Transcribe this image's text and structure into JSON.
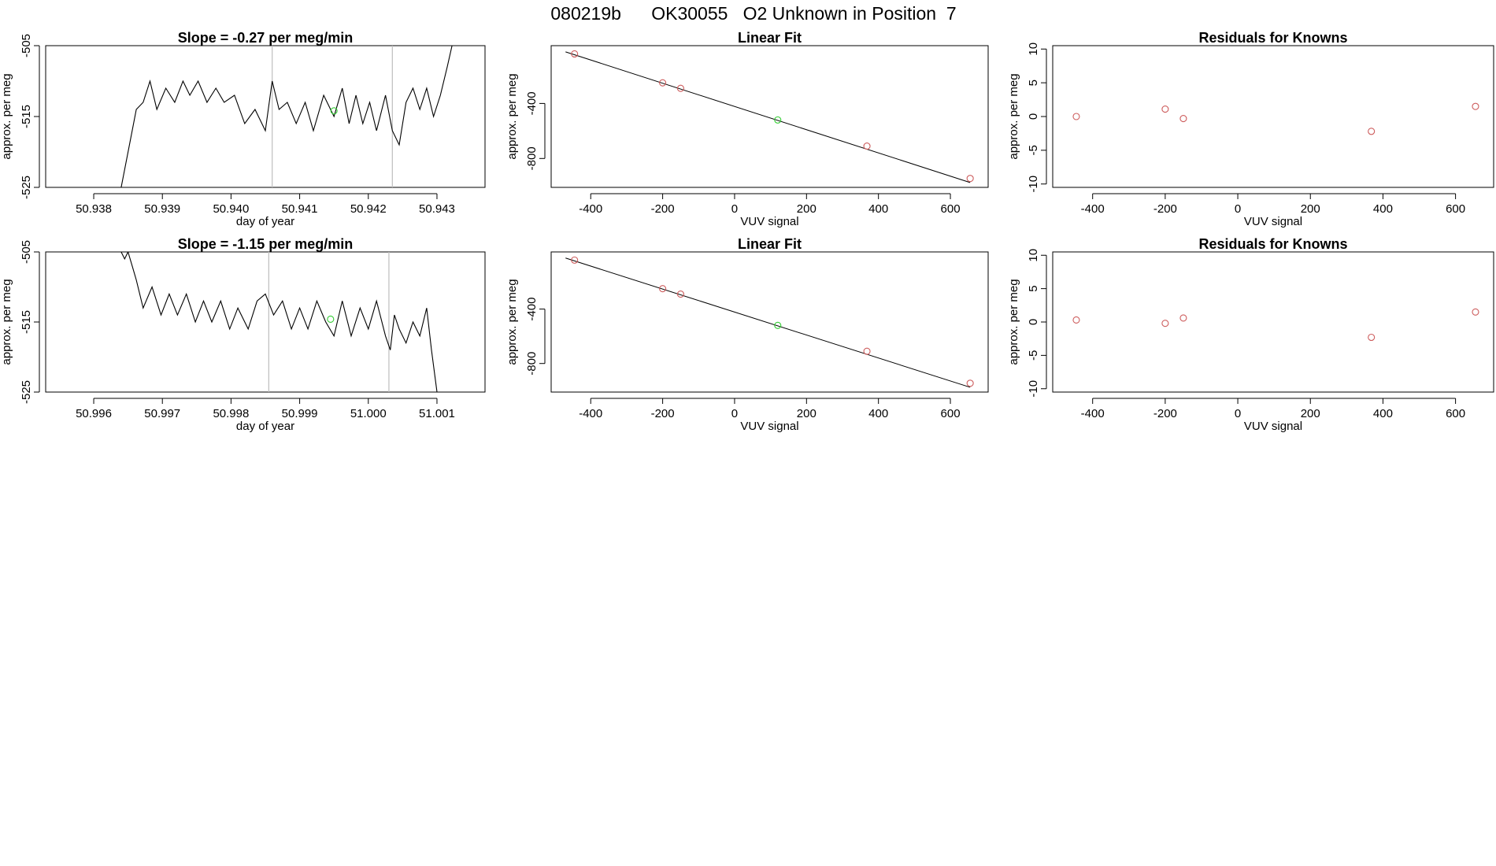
{
  "figure": {
    "title": "080219b      OK30055   O2 Unknown in Position  7"
  },
  "colors": {
    "known": "#cd5c5c",
    "unknown": "#32cd32",
    "line": "#000000",
    "marker": "#bebebe"
  },
  "chart_data": [
    {
      "type": "line",
      "title": "Slope =  -0.27  per meg/min",
      "xlabel": "day of year",
      "ylabel": "approx. per meg",
      "xlim": [
        50.9373,
        50.9437
      ],
      "ylim": [
        -525,
        -505
      ],
      "xticks": [
        "50.938",
        "50.939",
        "50.940",
        "50.941",
        "50.942",
        "50.943"
      ],
      "xtick_values": [
        50.938,
        50.939,
        50.94,
        50.941,
        50.942,
        50.943
      ],
      "yticks": [
        "-525",
        "-515",
        "-505"
      ],
      "ytick_values": [
        -525,
        -515,
        -505
      ],
      "vlines": [
        50.9406,
        50.94235
      ],
      "series": [
        {
          "role": "trace",
          "x": [
            50.9384,
            50.93852,
            50.93862,
            50.93872,
            50.93882,
            50.93892,
            50.93905,
            50.93918,
            50.9393,
            50.9394,
            50.93952,
            50.93965,
            50.93978,
            50.9399,
            50.94005,
            50.9402,
            50.94035,
            50.9405,
            50.9406,
            50.9407,
            50.94082,
            50.94095,
            50.94108,
            50.9412,
            50.94135,
            50.9415,
            50.94162,
            50.94172,
            50.94182,
            50.94192,
            50.94202,
            50.94212,
            50.94225,
            50.94235,
            50.94245,
            50.94255,
            50.94265,
            50.94275,
            50.94285,
            50.94295,
            50.94305,
            50.94315,
            50.94322
          ],
          "y": [
            -525,
            -519,
            -514,
            -513,
            -510,
            -514,
            -511,
            -513,
            -510,
            -512,
            -510,
            -513,
            -511,
            -513,
            -512,
            -516,
            -514,
            -517,
            -510,
            -514,
            -513,
            -516,
            -513,
            -517,
            -512,
            -515,
            -511,
            -516,
            -512,
            -516,
            -513,
            -517,
            -512,
            -517,
            -519,
            -513,
            -511,
            -514,
            -511,
            -515,
            -512,
            -508,
            -505
          ]
        },
        {
          "role": "unknown",
          "x": [
            50.9415
          ],
          "y": [
            -514.2
          ]
        }
      ]
    },
    {
      "type": "scatter",
      "title": "Linear Fit",
      "xlabel": "VUV signal",
      "ylabel": "approx. per meg",
      "xlim": [
        -510,
        705
      ],
      "ylim": [
        -1010,
        20
      ],
      "xticks": [
        "-400",
        "-200",
        "0",
        "200",
        "400",
        "600"
      ],
      "xtick_values": [
        -400,
        -200,
        0,
        200,
        400,
        600
      ],
      "yticks": [
        "-800",
        "-400"
      ],
      "ytick_values": [
        -800,
        -400
      ],
      "fit_line": {
        "x": [
          -470,
          655
        ],
        "y": [
          -25,
          -975
        ]
      },
      "series": [
        {
          "role": "known",
          "x": [
            -445,
            -200,
            -150,
            368,
            655
          ],
          "y": [
            -40,
            -250,
            -290,
            -710,
            -945
          ]
        },
        {
          "role": "unknown",
          "x": [
            120
          ],
          "y": [
            -520
          ]
        }
      ]
    },
    {
      "type": "scatter",
      "title": "Residuals for Knowns",
      "xlabel": "VUV signal",
      "ylabel": "approx. per meg",
      "xlim": [
        -510,
        705
      ],
      "ylim": [
        -10.5,
        10.5
      ],
      "xticks": [
        "-400",
        "-200",
        "0",
        "200",
        "400",
        "600"
      ],
      "xtick_values": [
        -400,
        -200,
        0,
        200,
        400,
        600
      ],
      "yticks": [
        "-10",
        "-5",
        "0",
        "5",
        "10"
      ],
      "ytick_values": [
        -10,
        -5,
        0,
        5,
        10
      ],
      "series": [
        {
          "role": "known",
          "x": [
            -445,
            -200,
            -150,
            368,
            655
          ],
          "y": [
            0.0,
            1.1,
            -0.3,
            -2.2,
            1.5
          ]
        }
      ]
    },
    {
      "type": "line",
      "title": "Slope =  -1.15  per meg/min",
      "xlabel": "day of year",
      "ylabel": "approx. per meg",
      "xlim": [
        50.9953,
        51.0017
      ],
      "ylim": [
        -525,
        -505
      ],
      "xticks": [
        "50.996",
        "50.997",
        "50.998",
        "50.999",
        "51.000",
        "51.001"
      ],
      "xtick_values": [
        50.996,
        50.997,
        50.998,
        50.999,
        51.0,
        51.001
      ],
      "yticks": [
        "-525",
        "-515",
        "-505"
      ],
      "ytick_values": [
        -525,
        -515,
        -505
      ],
      "vlines": [
        50.99855,
        51.0003
      ],
      "series": [
        {
          "role": "trace",
          "x": [
            50.9964,
            50.99645,
            50.9965,
            50.99656,
            50.99662,
            50.99672,
            50.99685,
            50.99698,
            50.9971,
            50.99722,
            50.99735,
            50.99748,
            50.9976,
            50.99772,
            50.99785,
            50.99798,
            50.9981,
            50.99825,
            50.99838,
            50.9985,
            50.99862,
            50.99875,
            50.99888,
            50.999,
            50.99912,
            50.99925,
            50.99938,
            50.9995,
            50.99962,
            50.99975,
            50.99988,
            51.0,
            51.00012,
            51.00025,
            51.00032,
            51.00038,
            51.00045,
            51.00055,
            51.00065,
            51.00075,
            51.00085,
            51.00092,
            51.001
          ],
          "y": [
            -505,
            -506,
            -505,
            -507,
            -509,
            -513,
            -510,
            -514,
            -511,
            -514,
            -511,
            -515,
            -512,
            -515,
            -512,
            -516,
            -513,
            -516,
            -512,
            -511,
            -514,
            -512,
            -516,
            -513,
            -516,
            -512,
            -515,
            -517,
            -512,
            -517,
            -513,
            -516,
            -512,
            -517,
            -519,
            -514,
            -516,
            -518,
            -515,
            -517,
            -513,
            -519,
            -525
          ]
        },
        {
          "role": "unknown",
          "x": [
            50.99945
          ],
          "y": [
            -514.6
          ]
        }
      ]
    },
    {
      "type": "scatter",
      "title": "Linear Fit",
      "xlabel": "VUV signal",
      "ylabel": "approx. per meg",
      "xlim": [
        -510,
        705
      ],
      "ylim": [
        -1010,
        20
      ],
      "xticks": [
        "-400",
        "-200",
        "0",
        "200",
        "400",
        "600"
      ],
      "xtick_values": [
        -400,
        -200,
        0,
        200,
        400,
        600
      ],
      "yticks": [
        "-800",
        "-400"
      ],
      "ytick_values": [
        -800,
        -400
      ],
      "fit_line": {
        "x": [
          -470,
          655
        ],
        "y": [
          -25,
          -975
        ]
      },
      "series": [
        {
          "role": "known",
          "x": [
            -445,
            -200,
            -150,
            368,
            655
          ],
          "y": [
            -40,
            -250,
            -290,
            -710,
            -945
          ]
        },
        {
          "role": "unknown",
          "x": [
            120
          ],
          "y": [
            -520
          ]
        }
      ]
    },
    {
      "type": "scatter",
      "title": "Residuals for Knowns",
      "xlabel": "VUV signal",
      "ylabel": "approx. per meg",
      "xlim": [
        -510,
        705
      ],
      "ylim": [
        -10.5,
        10.5
      ],
      "xticks": [
        "-400",
        "-200",
        "0",
        "200",
        "400",
        "600"
      ],
      "xtick_values": [
        -400,
        -200,
        0,
        200,
        400,
        600
      ],
      "yticks": [
        "-10",
        "-5",
        "0",
        "5",
        "10"
      ],
      "ytick_values": [
        -10,
        -5,
        0,
        5,
        10
      ],
      "series": [
        {
          "role": "known",
          "x": [
            -445,
            -200,
            -150,
            368,
            655
          ],
          "y": [
            0.3,
            -0.2,
            0.6,
            -2.3,
            1.5
          ]
        }
      ]
    }
  ]
}
